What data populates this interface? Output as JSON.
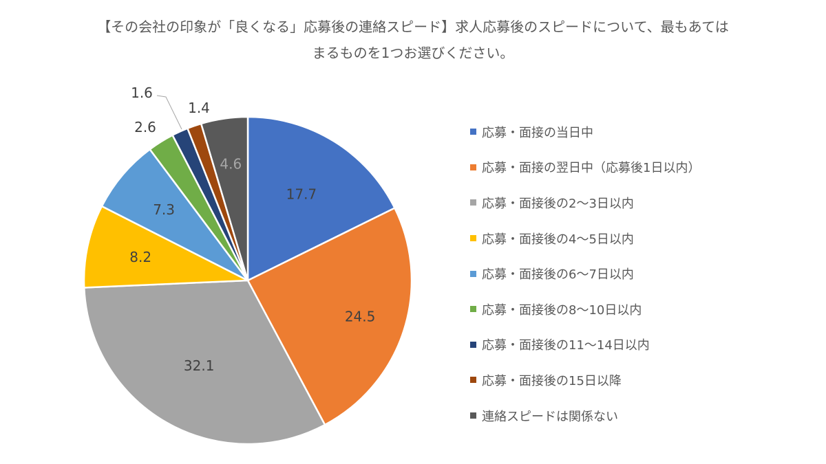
{
  "chart_data": {
    "type": "pie",
    "title_lines": [
      "【その会社の印象が「良くなる」応募後の連絡スピード】求人応募後のスピードについて、最もあては",
      "まるものを1つお選びください。"
    ],
    "slices": [
      {
        "label": "応募・面接の当日中",
        "value": 17.7,
        "value_label": "17.7",
        "color": "#4472C4",
        "text_color": "#404040"
      },
      {
        "label": "応募・面接の翌日中（応募後1日以内）",
        "value": 24.5,
        "value_label": "24.5",
        "color": "#ED7D31",
        "text_color": "#404040"
      },
      {
        "label": "応募・面接後の2～3日以内",
        "value": 32.1,
        "value_label": "32.1",
        "color": "#A5A5A5",
        "text_color": "#404040"
      },
      {
        "label": "応募・面接後の4～5日以内",
        "value": 8.2,
        "value_label": "8.2",
        "color": "#FFC000",
        "text_color": "#404040"
      },
      {
        "label": "応募・面接後の6～7日以内",
        "value": 7.3,
        "value_label": "7.3",
        "color": "#5B9BD5",
        "text_color": "#404040"
      },
      {
        "label": "応募・面接後の8～10日以内",
        "value": 2.6,
        "value_label": "2.6",
        "color": "#70AD47",
        "text_color": "#404040"
      },
      {
        "label": "応募・面接後の11～14日以内",
        "value": 1.6,
        "value_label": "1.6",
        "color": "#264478",
        "text_color": "#404040"
      },
      {
        "label": "応募・面接後の15日以降",
        "value": 1.4,
        "value_label": "1.4",
        "color": "#9E480E",
        "text_color": "#404040"
      },
      {
        "label": "連絡スピードは関係ない",
        "value": 4.6,
        "value_label": "4.6",
        "color": "#595959",
        "text_color": "#A6A6A6"
      }
    ],
    "start_angle": "12 o'clock",
    "direction": "clockwise",
    "legend_position": "right"
  }
}
